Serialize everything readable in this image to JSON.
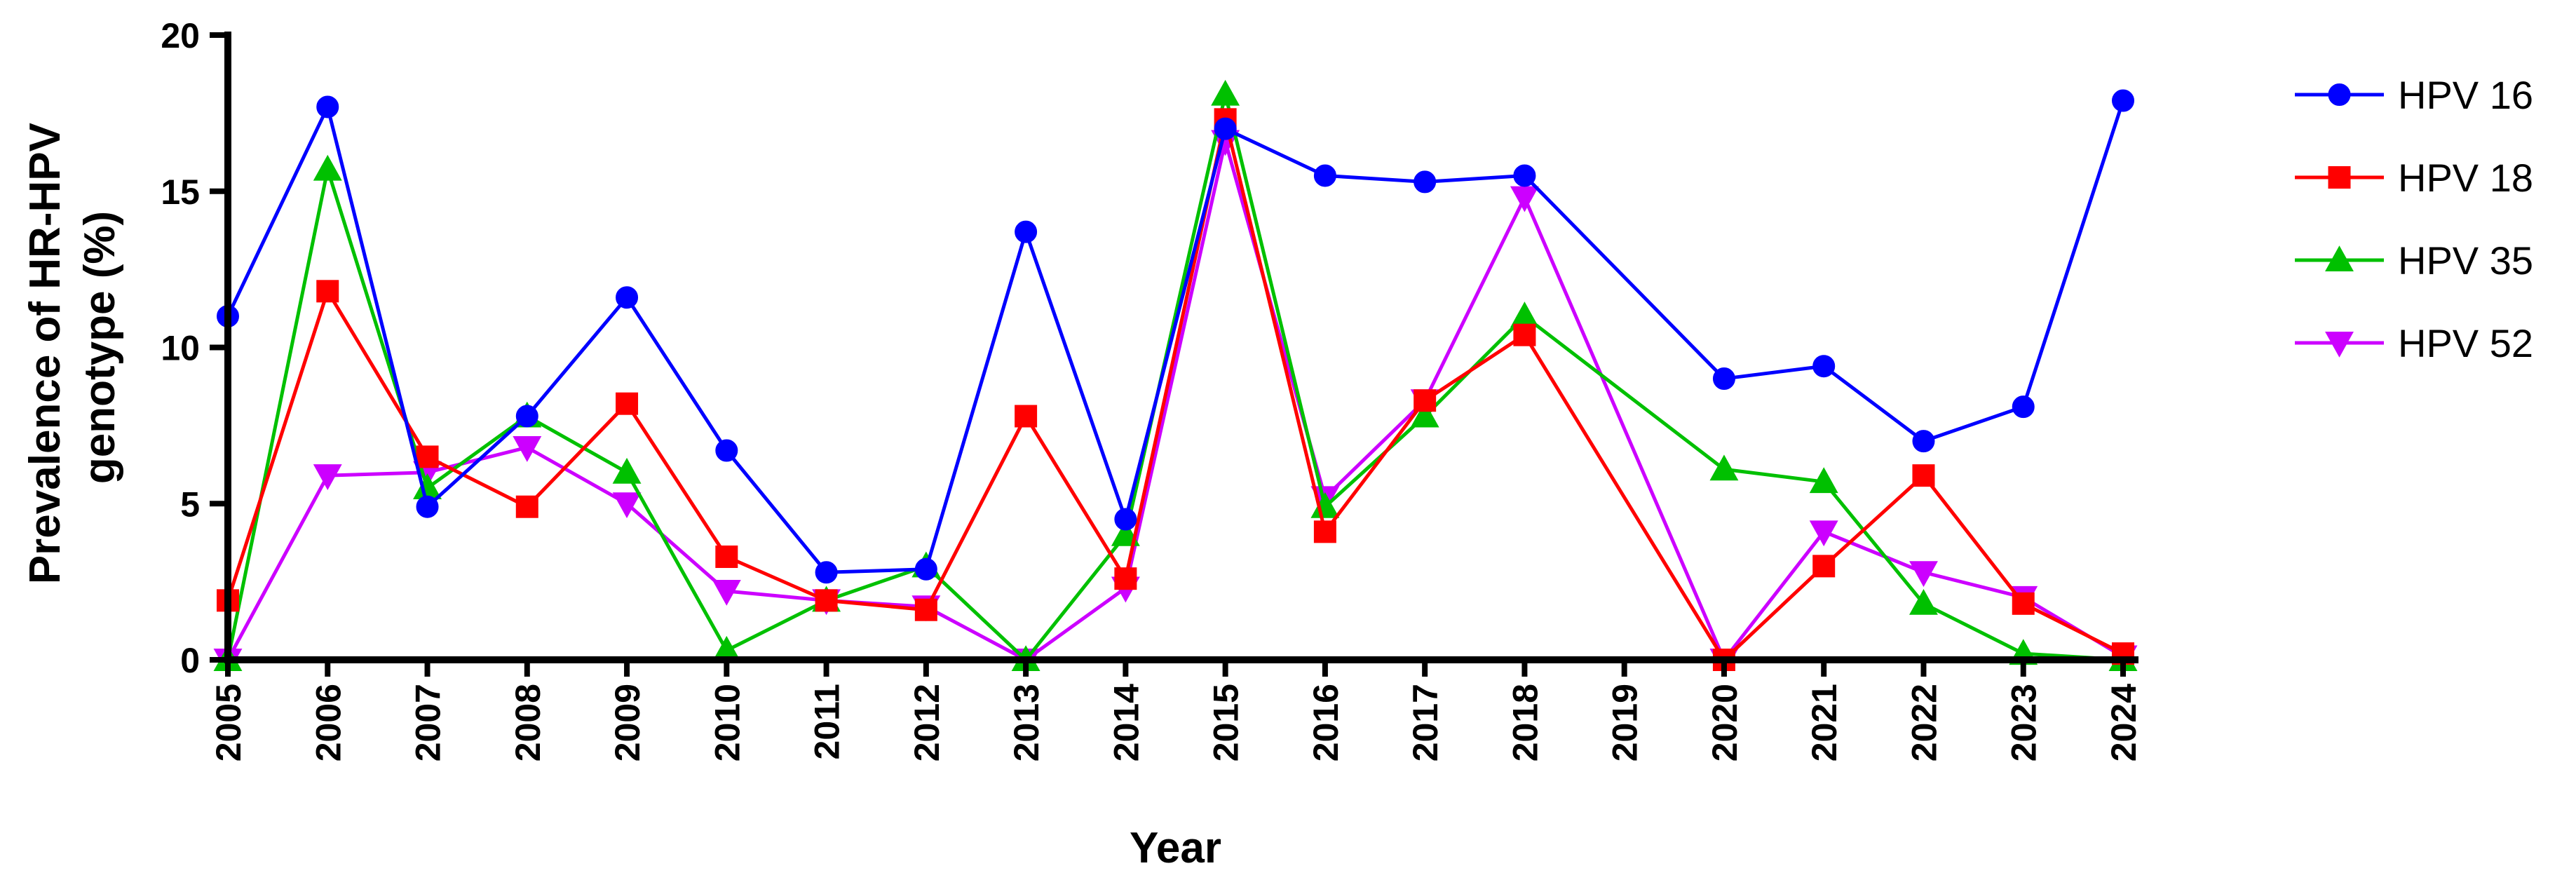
{
  "chart_data": {
    "type": "line",
    "title": "",
    "xlabel": "Year",
    "ylabel_lines": [
      "Prevalence of HR-HPV",
      "genotype (%)"
    ],
    "ylim": [
      0,
      20
    ],
    "yticks": [
      0,
      5,
      10,
      15,
      20
    ],
    "categories": [
      "2005",
      "2006",
      "2007",
      "2008",
      "2009",
      "2010",
      "2011",
      "2012",
      "2013",
      "2014",
      "2015",
      "2016",
      "2017",
      "2018",
      "2019",
      "2020",
      "2021",
      "2022",
      "2023",
      "2024"
    ],
    "legend_position": "right",
    "series": [
      {
        "name": "HPV 16",
        "color": "#0000ff",
        "marker": "circle",
        "values": [
          11.0,
          17.7,
          4.9,
          7.8,
          11.6,
          6.7,
          2.8,
          2.9,
          13.7,
          4.5,
          17.0,
          15.5,
          15.3,
          15.5,
          null,
          9.0,
          9.4,
          7.0,
          8.1,
          17.9
        ]
      },
      {
        "name": "HPV 18",
        "color": "#ff0000",
        "marker": "square",
        "values": [
          1.9,
          11.8,
          6.5,
          4.9,
          8.2,
          3.3,
          1.9,
          1.6,
          7.8,
          2.6,
          17.3,
          4.1,
          8.3,
          10.4,
          null,
          0.0,
          3.0,
          5.9,
          1.8,
          0.2
        ]
      },
      {
        "name": "HPV 35",
        "color": "#00c000",
        "marker": "triangle-up",
        "values": [
          0.0,
          15.7,
          5.5,
          7.8,
          6.0,
          0.3,
          1.9,
          3.0,
          0.0,
          4.0,
          18.1,
          4.9,
          7.8,
          11.0,
          null,
          6.1,
          5.7,
          1.8,
          0.2,
          0.0
        ]
      },
      {
        "name": "HPV 52",
        "color": "#cc00ff",
        "marker": "triangle-down",
        "values": [
          0.0,
          5.9,
          6.0,
          6.8,
          5.0,
          2.2,
          1.9,
          1.7,
          0.0,
          2.3,
          16.6,
          5.2,
          8.3,
          14.8,
          null,
          0.0,
          4.1,
          2.8,
          2.0,
          0.1
        ]
      }
    ]
  }
}
